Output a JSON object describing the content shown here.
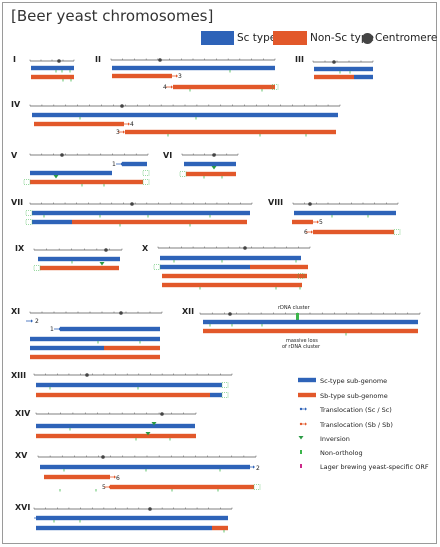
{
  "title": "[Beer yeast chromosomes]",
  "legend_top": {
    "sc_type": "Sc type",
    "non_sc_type": "Non-Sc type",
    "centromere": "Centromere"
  },
  "colors": {
    "sc": "#2e63b8",
    "non_sc": "#e2582a",
    "centromere": "#444444",
    "non_ortholog": "#3bb54a",
    "lager_orf": "#cc2a8a"
  },
  "rdna": {
    "cluster": "rDNA cluster",
    "massive_loss_1": "massive loss",
    "massive_loss_2": "of rDNA cluster"
  },
  "legend_bottom": [
    {
      "label": "Sc-type sub-genome",
      "kind": "sc-bar"
    },
    {
      "label": "Sb-type sub-genome",
      "kind": "sb-bar"
    },
    {
      "label": "Translocation (Sc / Sc)",
      "kind": "trans-sc"
    },
    {
      "label": "Translocation (Sb / Sb)",
      "kind": "trans-sb"
    },
    {
      "label": "Inversion",
      "kind": "inversion"
    },
    {
      "label": "Non-ortholog",
      "kind": "non-ortholog"
    },
    {
      "label": "Lager brewing yeast-specific ORF",
      "kind": "lager-orf"
    }
  ],
  "chromosomes": [
    {
      "id": "I",
      "label": "I"
    },
    {
      "id": "II",
      "label": "II",
      "num_a": "3",
      "num_b": "4"
    },
    {
      "id": "III",
      "label": "III"
    },
    {
      "id": "IV",
      "label": "IV",
      "num_a": "4",
      "num_b": "3"
    },
    {
      "id": "V",
      "label": "V",
      "num_a": "1"
    },
    {
      "id": "VI",
      "label": "VI"
    },
    {
      "id": "VII",
      "label": "VII"
    },
    {
      "id": "VIII",
      "label": "VIII",
      "num_a": "5",
      "num_b": "6"
    },
    {
      "id": "IX",
      "label": "IX"
    },
    {
      "id": "X",
      "label": "X"
    },
    {
      "id": "XI",
      "label": "XI",
      "num_a": "2",
      "num_b": "1"
    },
    {
      "id": "XII",
      "label": "XII"
    },
    {
      "id": "XIII",
      "label": "XIII"
    },
    {
      "id": "XIV",
      "label": "XIV"
    },
    {
      "id": "XV",
      "label": "XV",
      "num_a": "6",
      "num_b": "5"
    },
    {
      "id": "XVI",
      "label": "XVI",
      "num_a": "2"
    }
  ]
}
